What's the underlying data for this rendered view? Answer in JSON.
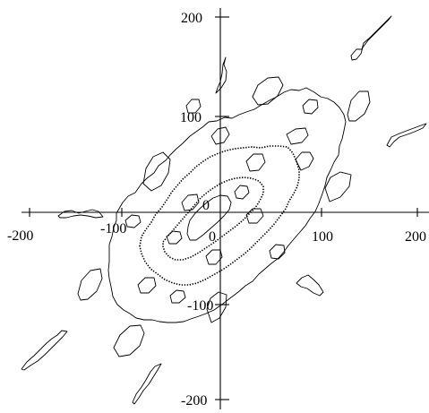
{
  "x_axis": {
    "ticks": [
      -200,
      -100,
      0,
      100,
      200
    ],
    "labels": [
      "-200",
      "-100",
      "0",
      "100",
      "200"
    ]
  },
  "y_axis": {
    "ticks": [
      200,
      100,
      0,
      -100,
      -200
    ],
    "labels": [
      "200",
      "100",
      "0",
      "-100",
      "-200"
    ]
  }
}
